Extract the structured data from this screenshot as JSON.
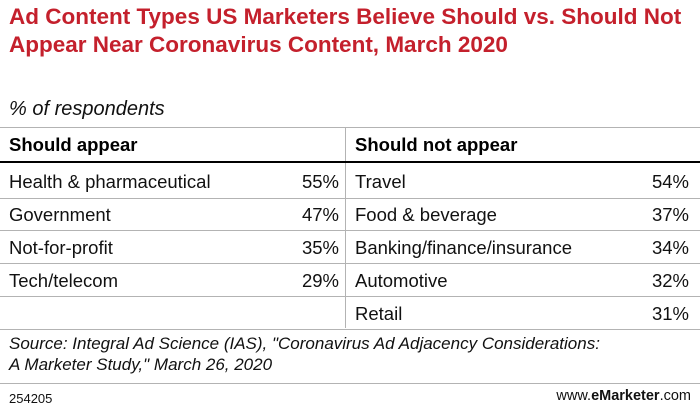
{
  "title": "Ad Content Types US Marketers Believe Should vs. Should Not Appear Near Coronavirus Content, March 2020",
  "subtitle": "% of respondents",
  "chart_data": {
    "type": "table",
    "columns": [
      "Should appear",
      "Should not appear"
    ],
    "should_appear": [
      {
        "label": "Health & pharmaceutical",
        "value": "55%"
      },
      {
        "label": "Government",
        "value": "47%"
      },
      {
        "label": "Not-for-profit",
        "value": "35%"
      },
      {
        "label": "Tech/telecom",
        "value": "29%"
      }
    ],
    "should_not_appear": [
      {
        "label": "Travel",
        "value": "54%"
      },
      {
        "label": "Food & beverage",
        "value": "37%"
      },
      {
        "label": "Banking/finance/insurance",
        "value": "34%"
      },
      {
        "label": "Automotive",
        "value": "32%"
      },
      {
        "label": "Retail",
        "value": "31%"
      }
    ]
  },
  "source": "Source: Integral Ad Science (IAS), \"Coronavirus Ad Adjacency Considerations: A Marketer Study,\" March 26, 2020",
  "footer": {
    "id": "254205",
    "brand_prefix": "www.",
    "brand_name": "eMarketer",
    "brand_suffix": ".com"
  },
  "colors": {
    "title": "#c4202c"
  }
}
